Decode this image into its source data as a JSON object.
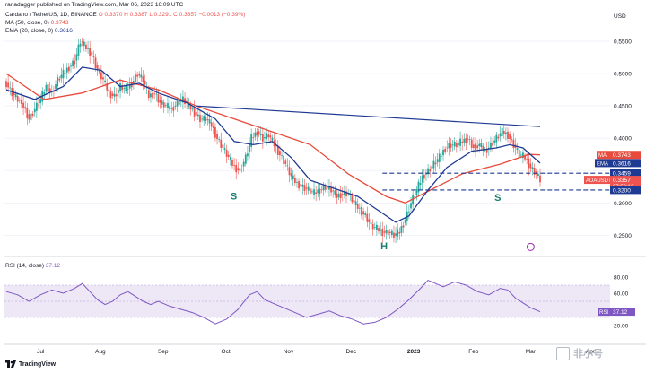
{
  "header": {
    "credit": "ranadagger published on TradingView.com, Mar 06, 2023 16:09 UTC",
    "symbol_line": "Cardano / TetherUS, 1D, BINANCE",
    "ohlc": "O 0.3370  H 0.3387  L 0.3291  C 0.3357  −0.0013 (−0.39%)",
    "ma_label": "MA (50, close, 0)",
    "ma_value": "0.3743",
    "ema_label": "EMA (20, close, 0)",
    "ema_value": "0.3616",
    "currency": "USD"
  },
  "colors": {
    "up": "#26a69a",
    "down": "#ef5350",
    "ma": "#e84a3b",
    "ema": "#1f3a93",
    "trendline": "#1f3a93",
    "rsi": "#7e57c2",
    "rsi_band": "#ede7f6"
  },
  "price_axis": {
    "ticks": [
      "0.5500",
      "0.5000",
      "0.4500",
      "0.4000",
      "0.3500",
      "0.3000",
      "0.2500"
    ]
  },
  "rsi_axis": {
    "ticks": [
      "80.00",
      "60.00",
      "40.00",
      "20.00"
    ]
  },
  "time_axis": {
    "labels": [
      "Jul",
      "Aug",
      "Sep",
      "Oct",
      "Nov",
      "Dec",
      "2023",
      "Feb",
      "Mar",
      "Apr"
    ]
  },
  "price_tags": [
    {
      "label": "MA",
      "value": "0.3743"
    },
    {
      "label": "EMA",
      "value": "0.3616"
    },
    {
      "label": "",
      "value": "0.3459"
    },
    {
      "label": "ADAUSDT",
      "value": "0.3357",
      "sub": "07:50:12"
    },
    {
      "label": "",
      "value": "0.3200"
    }
  ],
  "annotations": {
    "left_shoulder": "S",
    "head": "H",
    "right_shoulder": "S"
  },
  "rsi": {
    "label": "RSI (14, close)",
    "value": "37.12",
    "tag_label": "RSI"
  },
  "footer": {
    "logo_text": "TradingView",
    "watermark": "非小号"
  },
  "chart_data": {
    "type": "candlestick",
    "symbol": "ADAUSDT",
    "interval": "1D",
    "ylim": [
      0.22,
      0.6
    ],
    "x_labels": [
      "Jul",
      "Aug",
      "Sep",
      "Oct",
      "Nov",
      "Dec",
      "2023",
      "Feb",
      "Mar",
      "Apr"
    ],
    "close_path": [
      [
        0,
        0.485
      ],
      [
        3,
        0.47
      ],
      [
        6,
        0.46
      ],
      [
        9,
        0.45
      ],
      [
        12,
        0.43
      ],
      [
        15,
        0.445
      ],
      [
        18,
        0.46
      ],
      [
        21,
        0.48
      ],
      [
        24,
        0.47
      ],
      [
        27,
        0.49
      ],
      [
        30,
        0.5
      ],
      [
        33,
        0.51
      ],
      [
        36,
        0.52
      ],
      [
        39,
        0.55
      ],
      [
        42,
        0.54
      ],
      [
        45,
        0.53
      ],
      [
        48,
        0.505
      ],
      [
        51,
        0.49
      ],
      [
        54,
        0.47
      ],
      [
        57,
        0.465
      ],
      [
        60,
        0.48
      ],
      [
        63,
        0.475
      ],
      [
        66,
        0.485
      ],
      [
        69,
        0.5
      ],
      [
        72,
        0.49
      ],
      [
        75,
        0.465
      ],
      [
        78,
        0.47
      ],
      [
        81,
        0.455
      ],
      [
        84,
        0.45
      ],
      [
        87,
        0.445
      ],
      [
        90,
        0.455
      ],
      [
        93,
        0.46
      ],
      [
        96,
        0.45
      ],
      [
        99,
        0.44
      ],
      [
        102,
        0.43
      ],
      [
        105,
        0.43
      ],
      [
        108,
        0.42
      ],
      [
        111,
        0.4
      ],
      [
        114,
        0.385
      ],
      [
        117,
        0.37
      ],
      [
        120,
        0.355
      ],
      [
        123,
        0.35
      ],
      [
        126,
        0.37
      ],
      [
        129,
        0.4
      ],
      [
        132,
        0.41
      ],
      [
        135,
        0.4
      ],
      [
        138,
        0.405
      ],
      [
        141,
        0.39
      ],
      [
        144,
        0.375
      ],
      [
        147,
        0.36
      ],
      [
        150,
        0.34
      ],
      [
        153,
        0.33
      ],
      [
        156,
        0.325
      ],
      [
        159,
        0.32
      ],
      [
        162,
        0.315
      ],
      [
        165,
        0.32
      ],
      [
        168,
        0.325
      ],
      [
        171,
        0.32
      ],
      [
        174,
        0.31
      ],
      [
        177,
        0.315
      ],
      [
        180,
        0.315
      ],
      [
        183,
        0.3
      ],
      [
        186,
        0.29
      ],
      [
        189,
        0.28
      ],
      [
        192,
        0.265
      ],
      [
        195,
        0.26
      ],
      [
        198,
        0.255
      ],
      [
        201,
        0.255
      ],
      [
        204,
        0.25
      ],
      [
        207,
        0.255
      ],
      [
        210,
        0.275
      ],
      [
        213,
        0.3
      ],
      [
        216,
        0.32
      ],
      [
        219,
        0.34
      ],
      [
        222,
        0.35
      ],
      [
        225,
        0.36
      ],
      [
        228,
        0.37
      ],
      [
        231,
        0.385
      ],
      [
        234,
        0.39
      ],
      [
        237,
        0.39
      ],
      [
        240,
        0.395
      ],
      [
        243,
        0.4
      ],
      [
        246,
        0.385
      ],
      [
        249,
        0.39
      ],
      [
        252,
        0.38
      ],
      [
        255,
        0.39
      ],
      [
        258,
        0.4
      ],
      [
        261,
        0.41
      ],
      [
        264,
        0.405
      ],
      [
        267,
        0.39
      ],
      [
        270,
        0.375
      ],
      [
        273,
        0.37
      ],
      [
        276,
        0.355
      ],
      [
        279,
        0.345
      ],
      [
        281,
        0.3357
      ]
    ],
    "ma50_path": [
      [
        0,
        0.5
      ],
      [
        20,
        0.46
      ],
      [
        40,
        0.47
      ],
      [
        60,
        0.49
      ],
      [
        80,
        0.475
      ],
      [
        100,
        0.45
      ],
      [
        120,
        0.43
      ],
      [
        140,
        0.41
      ],
      [
        160,
        0.39
      ],
      [
        180,
        0.345
      ],
      [
        200,
        0.31
      ],
      [
        210,
        0.3
      ],
      [
        220,
        0.315
      ],
      [
        240,
        0.345
      ],
      [
        260,
        0.36
      ],
      [
        275,
        0.375
      ],
      [
        281,
        0.3743
      ]
    ],
    "ema20_path": [
      [
        0,
        0.475
      ],
      [
        15,
        0.46
      ],
      [
        30,
        0.48
      ],
      [
        40,
        0.51
      ],
      [
        50,
        0.505
      ],
      [
        60,
        0.48
      ],
      [
        70,
        0.485
      ],
      [
        80,
        0.47
      ],
      [
        95,
        0.455
      ],
      [
        110,
        0.43
      ],
      [
        120,
        0.395
      ],
      [
        130,
        0.39
      ],
      [
        140,
        0.395
      ],
      [
        150,
        0.37
      ],
      [
        160,
        0.335
      ],
      [
        175,
        0.32
      ],
      [
        185,
        0.31
      ],
      [
        195,
        0.29
      ],
      [
        205,
        0.27
      ],
      [
        212,
        0.28
      ],
      [
        222,
        0.32
      ],
      [
        232,
        0.355
      ],
      [
        245,
        0.38
      ],
      [
        258,
        0.385
      ],
      [
        265,
        0.39
      ],
      [
        272,
        0.385
      ],
      [
        281,
        0.3616
      ]
    ],
    "trendline": [
      [
        100,
        0.45
      ],
      [
        281,
        0.418
      ]
    ],
    "support_lines": [
      0.3459,
      0.32
    ],
    "rsi": {
      "ylim": [
        0,
        100
      ],
      "band": [
        30,
        70
      ],
      "path": [
        [
          0,
          62
        ],
        [
          6,
          58
        ],
        [
          12,
          50
        ],
        [
          18,
          58
        ],
        [
          24,
          64
        ],
        [
          30,
          60
        ],
        [
          36,
          66
        ],
        [
          40,
          72
        ],
        [
          44,
          62
        ],
        [
          48,
          52
        ],
        [
          52,
          46
        ],
        [
          56,
          50
        ],
        [
          60,
          58
        ],
        [
          64,
          62
        ],
        [
          68,
          56
        ],
        [
          72,
          50
        ],
        [
          76,
          46
        ],
        [
          80,
          50
        ],
        [
          86,
          44
        ],
        [
          92,
          40
        ],
        [
          98,
          36
        ],
        [
          104,
          30
        ],
        [
          110,
          22
        ],
        [
          116,
          28
        ],
        [
          122,
          40
        ],
        [
          128,
          58
        ],
        [
          132,
          62
        ],
        [
          136,
          52
        ],
        [
          140,
          48
        ],
        [
          146,
          42
        ],
        [
          152,
          36
        ],
        [
          158,
          30
        ],
        [
          164,
          34
        ],
        [
          170,
          38
        ],
        [
          176,
          32
        ],
        [
          182,
          28
        ],
        [
          188,
          22
        ],
        [
          194,
          24
        ],
        [
          200,
          30
        ],
        [
          206,
          40
        ],
        [
          212,
          52
        ],
        [
          218,
          66
        ],
        [
          222,
          76
        ],
        [
          226,
          72
        ],
        [
          230,
          68
        ],
        [
          236,
          74
        ],
        [
          242,
          70
        ],
        [
          248,
          62
        ],
        [
          254,
          58
        ],
        [
          260,
          66
        ],
        [
          264,
          64
        ],
        [
          268,
          54
        ],
        [
          272,
          48
        ],
        [
          276,
          42
        ],
        [
          281,
          37.12
        ]
      ]
    }
  }
}
